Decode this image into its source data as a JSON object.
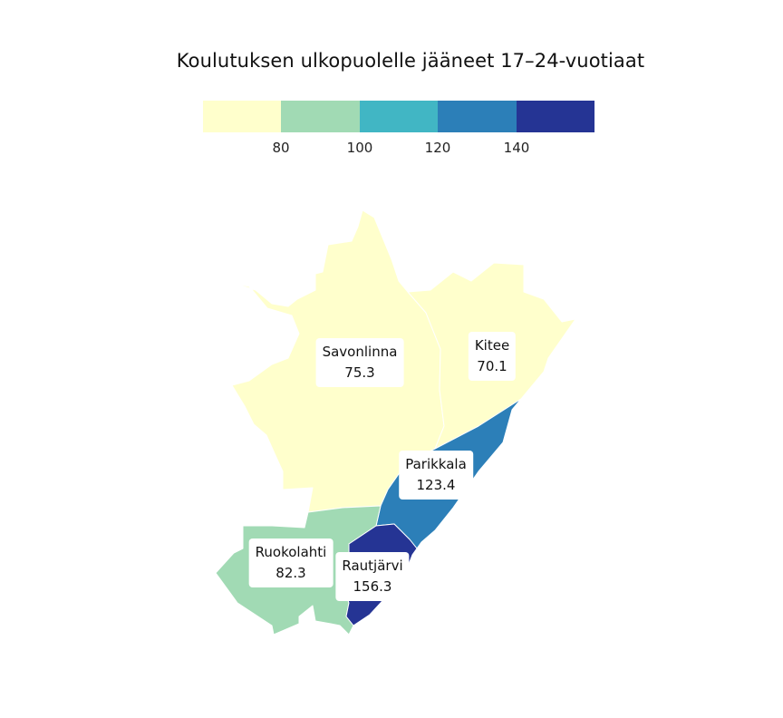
{
  "title": "Koulutuksen ulkopuolelle jääneet 17–24-vuotiaat",
  "legend": {
    "colors": [
      "#ffffcc",
      "#a1dab4",
      "#41b6c4",
      "#2c7fb8",
      "#253494"
    ],
    "breaks": [
      "80",
      "100",
      "120",
      "140"
    ]
  },
  "regions": [
    {
      "name": "Savonlinna",
      "value": "75.3",
      "color": "#ffffcc"
    },
    {
      "name": "Kitee",
      "value": "70.1",
      "color": "#ffffcc"
    },
    {
      "name": "Parikkala",
      "value": "123.4",
      "color": "#2c7fb8"
    },
    {
      "name": "Ruokolahti",
      "value": "82.3",
      "color": "#a1dab4"
    },
    {
      "name": "Rautjärvi",
      "value": "156.3",
      "color": "#253494"
    }
  ]
}
